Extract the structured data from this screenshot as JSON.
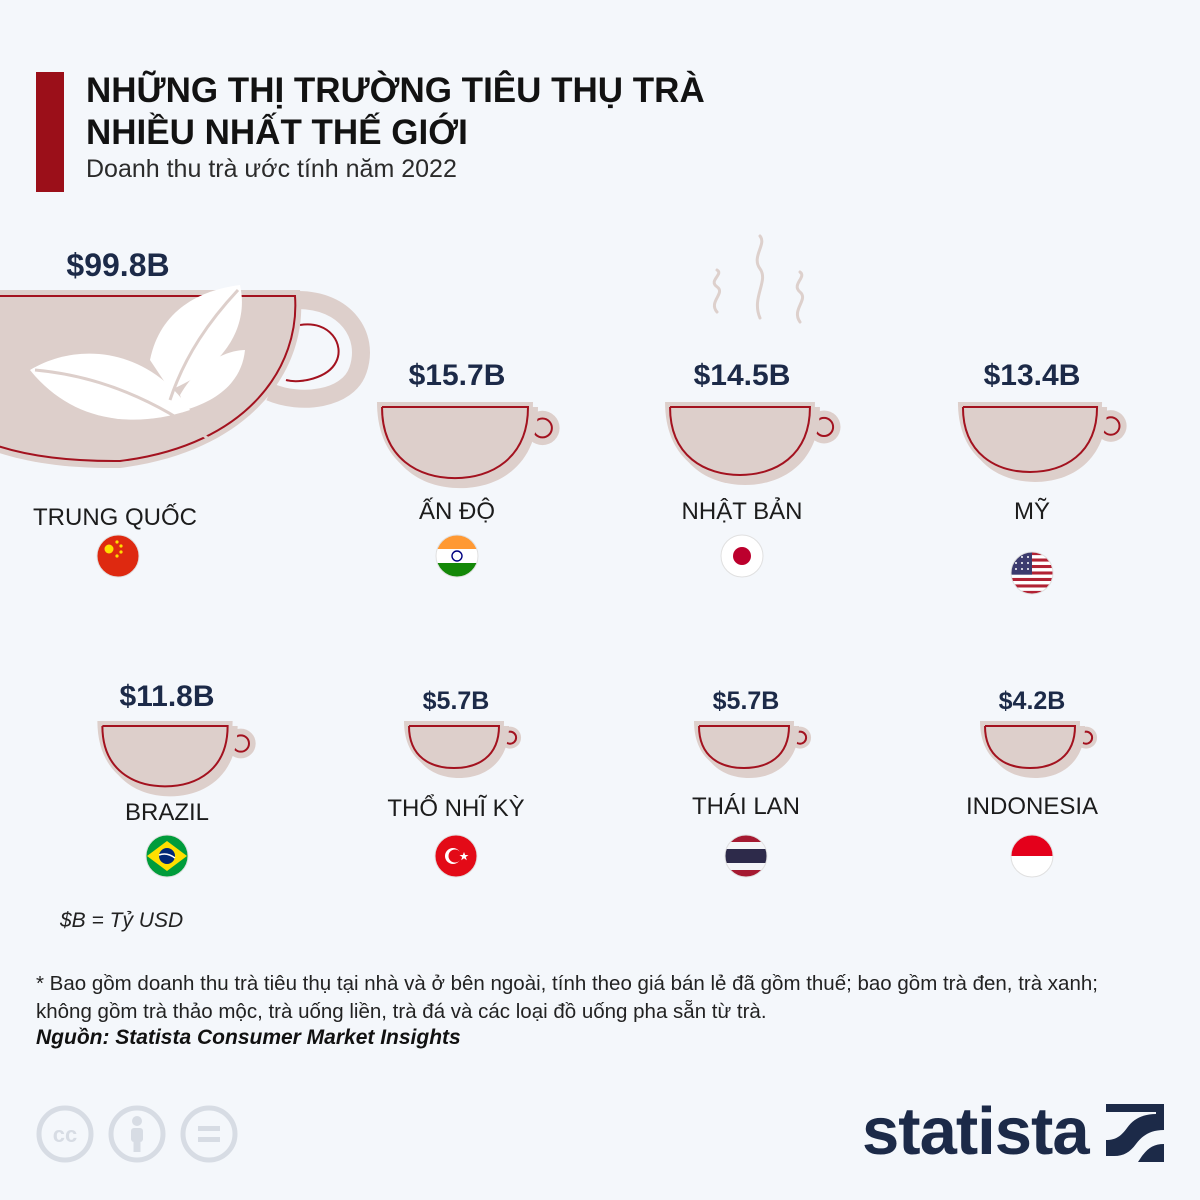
{
  "title_line1": "NHỮNG THỊ TRƯỜNG TIÊU THỤ TRÀ",
  "title_line2": "NHIỀU NHẤT THẾ GIỚI",
  "subtitle": "Doanh thu trà ước tính năm 2022",
  "unit_note": "$B = Tỷ USD",
  "footnote": "* Bao gồm doanh thu trà tiêu thụ tại nhà và ở bên ngoài, tính theo giá bán lẻ đã gồm thuế; bao gồm trà đen, trà xanh; không gồm trà thảo mộc, trà uống liền, trà đá và các loại đồ uống pha sẵn từ trà.",
  "source": "Nguồn: Statista Consumer Market Insights",
  "brand": "statista",
  "colors": {
    "accent": "#9b0f19",
    "cup_fill": "#ddcfcb",
    "cup_stroke": "#a3121f",
    "value_text": "#1c2a48",
    "background": "#f4f7fb"
  },
  "chart_data": {
    "type": "pictograph",
    "unit": "Tỷ USD",
    "categories": [
      "TRUNG QUỐC",
      "ẤN ĐỘ",
      "NHẬT BẢN",
      "MỸ",
      "BRAZIL",
      "THỔ NHĨ KỲ",
      "THÁI LAN",
      "INDONESIA"
    ],
    "values": [
      99.8,
      15.7,
      14.5,
      13.4,
      11.8,
      5.7,
      5.7,
      4.2
    ],
    "value_labels": [
      "$99.8B",
      "$15.7B",
      "$14.5B",
      "$13.4B",
      "$11.8B",
      "$5.7B",
      "$5.7B",
      "$4.2B"
    ],
    "flags": [
      "china-flag",
      "india-flag",
      "japan-flag",
      "usa-flag",
      "brazil-flag",
      "turkey-flag",
      "thailand-flag",
      "indonesia-flag"
    ]
  }
}
